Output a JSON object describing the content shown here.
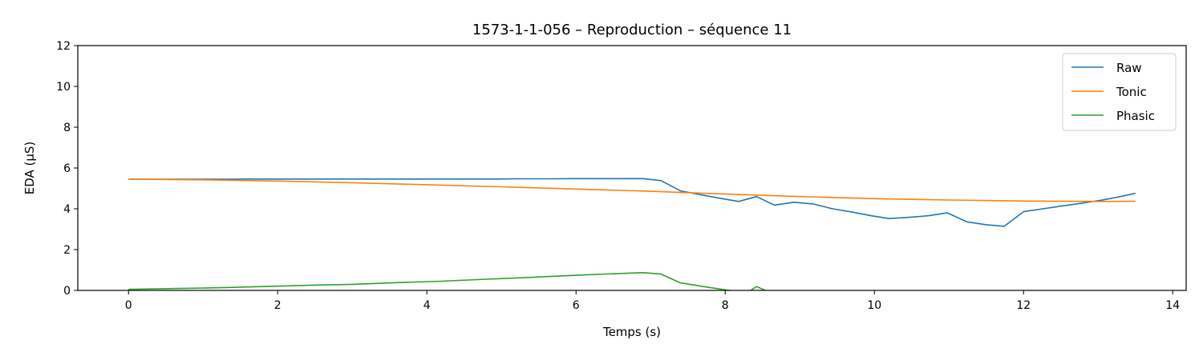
{
  "chart_data": {
    "type": "line",
    "title": "1573-1-1-056 – Reproduction – séquence 11",
    "xlabel": "Temps (s)",
    "ylabel": "EDA (µS)",
    "xlim": [
      -0.68,
      14.18
    ],
    "ylim": [
      0,
      12
    ],
    "xticks": [
      0,
      2,
      4,
      6,
      8,
      10,
      12,
      14
    ],
    "yticks": [
      0,
      2,
      4,
      6,
      8,
      10,
      12
    ],
    "grid": false,
    "legend_position": "top-right",
    "series": [
      {
        "name": "Raw",
        "color": "#1f77b4",
        "x": [
          0,
          0.26,
          0.52,
          0.78,
          1.04,
          1.3,
          1.56,
          1.82,
          2.08,
          2.34,
          2.6,
          2.86,
          3.12,
          3.38,
          3.64,
          3.9,
          4.16,
          4.42,
          4.68,
          4.94,
          5.2,
          5.46,
          5.72,
          5.98,
          6.24,
          6.5,
          6.76,
          6.9,
          7.14,
          7.4,
          7.66,
          7.92,
          8.18,
          8.42,
          8.66,
          8.92,
          9.18,
          9.44,
          9.7,
          9.96,
          10.2,
          10.46,
          10.72,
          10.98,
          11.24,
          11.5,
          11.74,
          12.0,
          12.26,
          12.52,
          12.78,
          13.04,
          13.3,
          13.5
        ],
        "values": [
          5.45,
          5.45,
          5.45,
          5.45,
          5.45,
          5.45,
          5.46,
          5.46,
          5.46,
          5.46,
          5.46,
          5.46,
          5.46,
          5.46,
          5.46,
          5.46,
          5.46,
          5.46,
          5.46,
          5.46,
          5.47,
          5.47,
          5.47,
          5.48,
          5.48,
          5.48,
          5.48,
          5.48,
          5.38,
          4.88,
          4.7,
          4.52,
          4.36,
          4.6,
          4.18,
          4.32,
          4.24,
          4.0,
          3.84,
          3.66,
          3.52,
          3.58,
          3.66,
          3.8,
          3.36,
          3.22,
          3.14,
          3.86,
          4.0,
          4.14,
          4.28,
          4.42,
          4.6,
          4.76
        ]
      },
      {
        "name": "Tonic",
        "color": "#ff7f0e",
        "x": [
          0,
          1,
          2,
          3,
          4,
          5,
          6,
          7,
          8,
          9,
          10,
          11,
          12,
          13,
          13.5
        ],
        "values": [
          5.45,
          5.42,
          5.36,
          5.28,
          5.18,
          5.08,
          4.97,
          4.86,
          4.72,
          4.6,
          4.5,
          4.43,
          4.38,
          4.36,
          4.37
        ]
      },
      {
        "name": "Phasic",
        "color": "#2ca02c",
        "x": [
          0,
          0.6,
          1.2,
          1.8,
          2.4,
          3.0,
          3.6,
          4.2,
          4.8,
          5.4,
          6.0,
          6.6,
          6.9,
          7.14,
          7.4,
          7.66,
          7.92,
          8.1,
          8.3,
          8.42,
          8.6
        ],
        "values": [
          0.05,
          0.09,
          0.13,
          0.19,
          0.25,
          0.3,
          0.38,
          0.45,
          0.55,
          0.64,
          0.74,
          0.83,
          0.87,
          0.8,
          0.37,
          0.22,
          0.07,
          -0.03,
          -0.1,
          0.19,
          -0.1
        ]
      }
    ]
  }
}
